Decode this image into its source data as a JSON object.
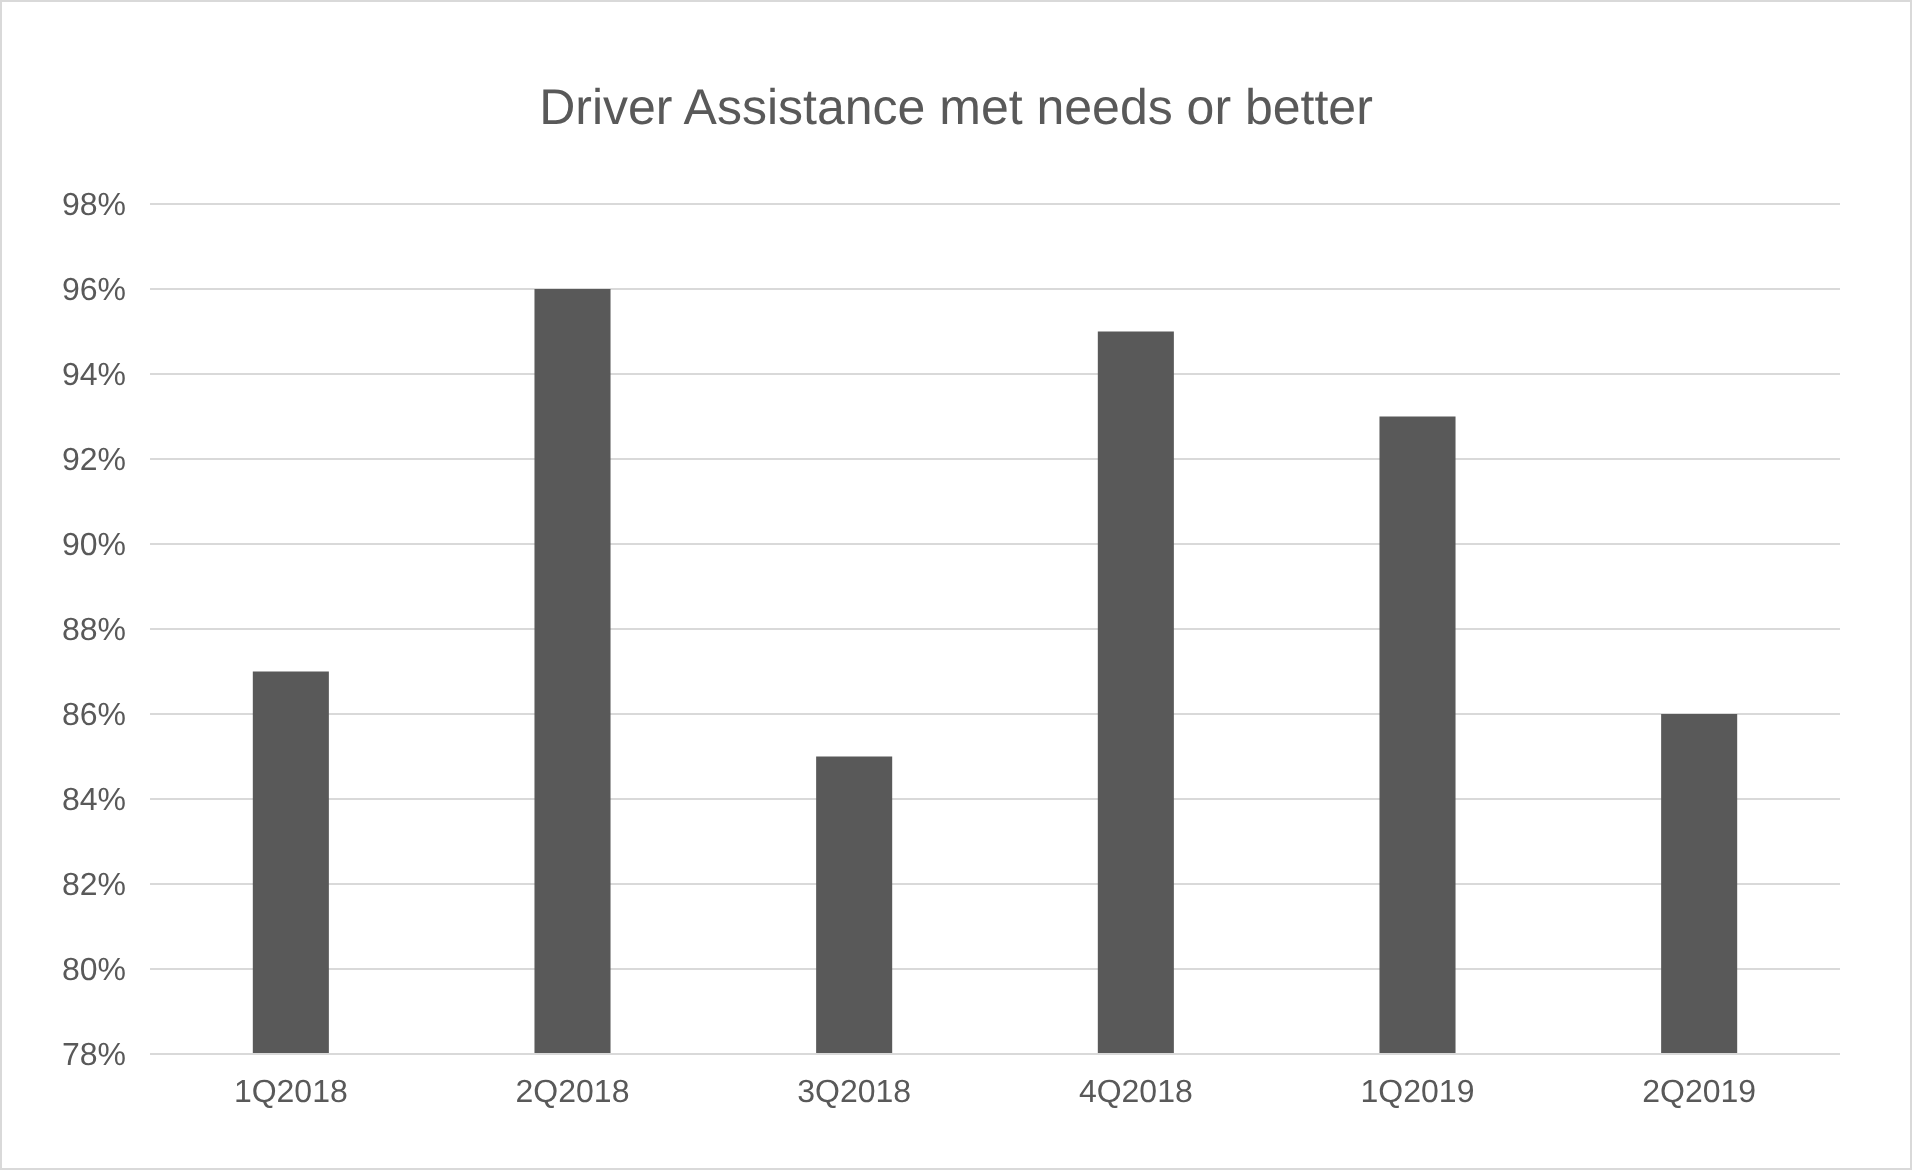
{
  "chart_data": {
    "type": "bar",
    "title": "Driver Assistance met needs or better",
    "categories": [
      "1Q2018",
      "2Q2018",
      "3Q2018",
      "4Q2018",
      "1Q2019",
      "2Q2019"
    ],
    "values": [
      87,
      96,
      85,
      95,
      93,
      86
    ],
    "color": "#595959",
    "ylim": [
      78,
      98
    ],
    "yticks": [
      {
        "value": 78,
        "label": "78%"
      },
      {
        "value": 80,
        "label": "80%"
      },
      {
        "value": 82,
        "label": "82%"
      },
      {
        "value": 84,
        "label": "84%"
      },
      {
        "value": 86,
        "label": "86%"
      },
      {
        "value": 88,
        "label": "88%"
      },
      {
        "value": 90,
        "label": "90%"
      },
      {
        "value": 92,
        "label": "92%"
      },
      {
        "value": 94,
        "label": "94%"
      },
      {
        "value": 96,
        "label": "96%"
      },
      {
        "value": 98,
        "label": "98%"
      }
    ],
    "grid": "y"
  }
}
